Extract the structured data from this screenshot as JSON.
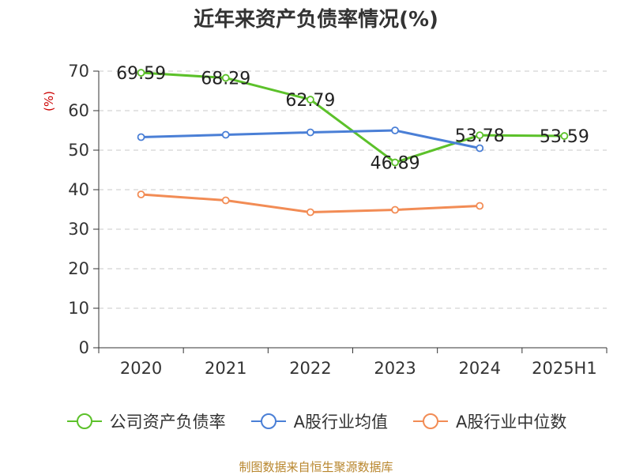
{
  "chart_data": {
    "type": "line",
    "title": "近年来资产负债率情况(%)",
    "ylabel": "(%)",
    "xlabel": "",
    "categories": [
      "2020",
      "2021",
      "2022",
      "2023",
      "2024",
      "2025H1"
    ],
    "ylim": [
      0,
      70
    ],
    "yticks": [
      0,
      10,
      20,
      30,
      40,
      50,
      60,
      70
    ],
    "grid": true,
    "legend_position": "bottom",
    "series": [
      {
        "name": "公司资产负债率",
        "color": "#5cc12a",
        "values": [
          69.59,
          68.29,
          62.79,
          46.89,
          53.78,
          53.59
        ],
        "labels": [
          "69.59",
          "68.29",
          "62.79",
          "46.89",
          "53.78",
          "53.59"
        ]
      },
      {
        "name": "A股行业均值",
        "color": "#4a7fd6",
        "values": [
          53.3,
          53.9,
          54.5,
          55.0,
          50.5,
          null
        ]
      },
      {
        "name": "A股行业中位数",
        "color": "#f28c55",
        "values": [
          38.8,
          37.3,
          34.3,
          34.9,
          35.9,
          null
        ]
      }
    ]
  },
  "source_note": "制图数据来自恒生聚源数据库"
}
